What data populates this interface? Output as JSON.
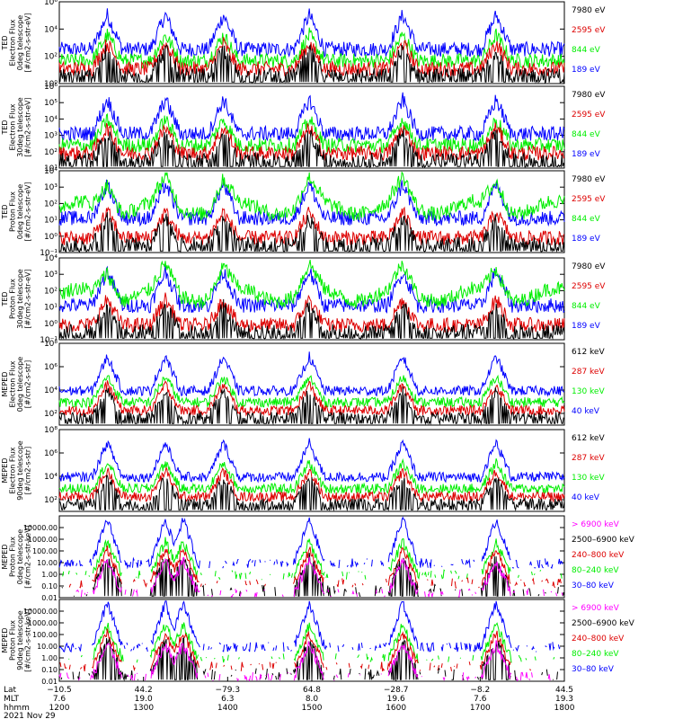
{
  "chart_data": {
    "type": "line",
    "date": "2021 Nov 29",
    "xaxis": {
      "row_labels": [
        "Lat",
        "MLT",
        "hhmm"
      ],
      "ticks": [
        {
          "lat": "−10.5",
          "mlt": "7.6",
          "hhmm": "1200"
        },
        {
          "lat": "44.2",
          "mlt": "19.0",
          "hhmm": "1300"
        },
        {
          "lat": "−79.3",
          "mlt": "6.3",
          "hhmm": "1400"
        },
        {
          "lat": "64.8",
          "mlt": "8.0",
          "hhmm": "1500"
        },
        {
          "lat": "−28.7",
          "mlt": "19.6",
          "hhmm": "1600"
        },
        {
          "lat": "−8.2",
          "mlt": "7.6",
          "hhmm": "1700"
        },
        {
          "lat": "44.5",
          "mlt": "19.3",
          "hhmm": "1800"
        }
      ],
      "time_range_hhmm": [
        "1200",
        "1800"
      ]
    },
    "colors": {
      "black": "#000000",
      "red": "#dd0000",
      "green": "#00ee00",
      "blue": "#0000ff",
      "magenta": "#ff00ff"
    },
    "panels": [
      {
        "ylabel": [
          "TED",
          "Electron Flux",
          "0deg telescope",
          "[#/cm2-s-str-eV]"
        ],
        "yscale": "log",
        "ylim_exp": [
          0,
          6
        ],
        "yticks_exp": [
          0,
          2,
          4,
          6
        ],
        "tick_format": "pow",
        "series": [
          {
            "name": "7980 eV",
            "color": "black"
          },
          {
            "name": "2595 eV",
            "color": "red"
          },
          {
            "name": "844 eV",
            "color": "green"
          },
          {
            "name": "189 eV",
            "color": "blue"
          }
        ]
      },
      {
        "ylabel": [
          "TED",
          "Electron Flux",
          "30deg telescope",
          "[#/cm2-s-str-eV]"
        ],
        "yscale": "log",
        "ylim_exp": [
          1,
          6
        ],
        "yticks_exp": [
          1,
          2,
          3,
          4,
          5,
          6
        ],
        "tick_format": "pow",
        "series": [
          {
            "name": "7980 eV",
            "color": "black"
          },
          {
            "name": "2595 eV",
            "color": "red"
          },
          {
            "name": "844 eV",
            "color": "green"
          },
          {
            "name": "189 eV",
            "color": "blue"
          }
        ]
      },
      {
        "ylabel": [
          "TED",
          "Proton Flux",
          "0deg telescope",
          "[#/cm2-s-str-eV]"
        ],
        "yscale": "log",
        "ylim_exp": [
          -1,
          4
        ],
        "yticks_exp": [
          -1,
          0,
          1,
          2,
          3,
          4
        ],
        "tick_format": "pow",
        "series": [
          {
            "name": "7980 eV",
            "color": "black"
          },
          {
            "name": "2595 eV",
            "color": "red"
          },
          {
            "name": "844 eV",
            "color": "green"
          },
          {
            "name": "189 eV",
            "color": "blue"
          }
        ]
      },
      {
        "ylabel": [
          "TED",
          "Proton Flux",
          "30deg telescope",
          "[#/cm2-s-str-eV]"
        ],
        "yscale": "log",
        "ylim_exp": [
          -1,
          4
        ],
        "yticks_exp": [
          -1,
          0,
          1,
          2,
          3,
          4
        ],
        "tick_format": "pow",
        "series": [
          {
            "name": "7980 eV",
            "color": "black"
          },
          {
            "name": "2595 eV",
            "color": "red"
          },
          {
            "name": "844 eV",
            "color": "green"
          },
          {
            "name": "189 eV",
            "color": "blue"
          }
        ]
      },
      {
        "ylabel": [
          "MEPED",
          "Electron Flux",
          "0deg telescope",
          "[#/cm2-s-str]"
        ],
        "yscale": "log",
        "ylim_exp": [
          1,
          8
        ],
        "yticks_exp": [
          2,
          4,
          6,
          8
        ],
        "tick_format": "pow",
        "series": [
          {
            "name": "612 keV",
            "color": "black"
          },
          {
            "name": "287 keV",
            "color": "red"
          },
          {
            "name": "130 keV",
            "color": "green"
          },
          {
            "name": "40 keV",
            "color": "blue"
          }
        ]
      },
      {
        "ylabel": [
          "MEPED",
          "Electron Flux",
          "90deg telescope",
          "[#/cm2-s-str]"
        ],
        "yscale": "log",
        "ylim_exp": [
          1,
          8
        ],
        "yticks_exp": [
          2,
          4,
          6,
          8
        ],
        "tick_format": "pow",
        "series": [
          {
            "name": "612 keV",
            "color": "black"
          },
          {
            "name": "287 keV",
            "color": "red"
          },
          {
            "name": "130 keV",
            "color": "green"
          },
          {
            "name": "40 keV",
            "color": "blue"
          }
        ]
      },
      {
        "ylabel": [
          "MEPED",
          "Proton Flux",
          "0deg telescope",
          "[#/cm2-s-str-keV]"
        ],
        "yscale": "log",
        "ylim_exp": [
          -2,
          5
        ],
        "yticks_exp": [
          -2,
          -1,
          0,
          1,
          2,
          3,
          4
        ],
        "tick_format": "decimal",
        "series": [
          {
            "name": "> 6900 keV",
            "color": "magenta"
          },
          {
            "name": "2500–6900 keV",
            "color": "black"
          },
          {
            "name": "240–800 keV",
            "color": "red"
          },
          {
            "name": "80–240 keV",
            "color": "green"
          },
          {
            "name": "30–80 keV",
            "color": "blue"
          }
        ]
      },
      {
        "ylabel": [
          "MEPED",
          "Proton Flux",
          "90deg telescope",
          "[#/cm2-s-str-keV]"
        ],
        "yscale": "log",
        "ylim_exp": [
          -2,
          5
        ],
        "yticks_exp": [
          -2,
          -1,
          0,
          1,
          2,
          3,
          4
        ],
        "tick_format": "decimal",
        "series": [
          {
            "name": "> 6900 keV",
            "color": "magenta"
          },
          {
            "name": "2500–6900 keV",
            "color": "black"
          },
          {
            "name": "240–800 keV",
            "color": "red"
          },
          {
            "name": "80–240 keV",
            "color": "green"
          },
          {
            "name": "30–80 keV",
            "color": "blue"
          }
        ]
      }
    ]
  }
}
